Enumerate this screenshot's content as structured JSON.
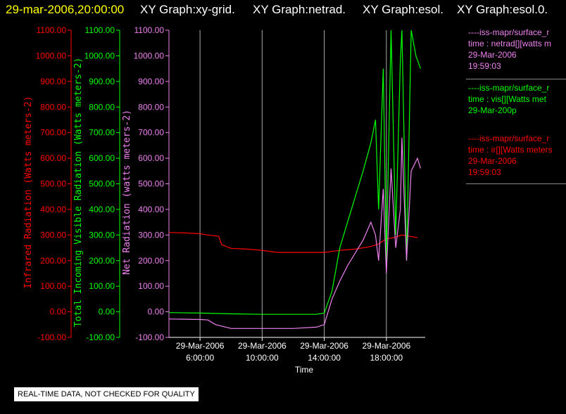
{
  "header": {
    "timestamp": "29-mar-2006,20:00:00",
    "graphs": [
      "XY Graph:xy-grid.",
      "XY Graph:netrad.",
      "XY Graph:esol.",
      "XY Graph:esol.0."
    ]
  },
  "legend": [
    {
      "lines": [
        "----iss-mapr/surface_r",
        "time : netrad[][watts m",
        "29-Mar-2006",
        "19:59:03"
      ],
      "color": "#ee82ee"
    },
    {
      "lines": [
        "----iss-mapr/surface_r",
        "time : vis[][Watts met",
        "29-Mar-200p"
      ],
      "color": "#00ff00"
    },
    {
      "lines": [
        "----iss-mapr/surface_r",
        "time : ir[][Watts meters",
        "29-Mar-2006",
        "19:59:03"
      ],
      "color": "#ff0000"
    }
  ],
  "quality_note": "REAL-TIME DATA, NOT CHECKED FOR QUALITY",
  "chart_data": {
    "type": "line",
    "xlabel": "Time",
    "x_ticks": [
      {
        "date": "29-Mar-2006",
        "time": "6:00:00",
        "hour": 6
      },
      {
        "date": "29-Mar-2006",
        "time": "10:00:00",
        "hour": 10
      },
      {
        "date": "29-Mar-2006",
        "time": "14:00:00",
        "hour": 14
      },
      {
        "date": "29-Mar-2006",
        "time": "18:00:00",
        "hour": 18
      }
    ],
    "xlim_hours": [
      4.0,
      20.5
    ],
    "ylim": [
      -100,
      1100
    ],
    "y_ticks": [
      "-100.00",
      "0.00",
      "100.00",
      "200.00",
      "300.00",
      "400.00",
      "500.00",
      "600.00",
      "700.00",
      "800.00",
      "900.00",
      "1000.00",
      "1100.00"
    ],
    "grid": "vertical",
    "axes": [
      {
        "label": "Infrared Radiation (Watts meters-2)",
        "color": "#ff0000"
      },
      {
        "label": "Total Incoming Visible Radiation (Watts meters-2)",
        "color": "#00ff00"
      },
      {
        "label": "Net Radiation (watts meters-2)",
        "color": "#ee82ee"
      }
    ],
    "series": [
      {
        "name": "ir",
        "color": "#ff0000",
        "x": [
          4.0,
          5.0,
          6.0,
          6.5,
          7.2,
          7.4,
          8.0,
          9.0,
          10.0,
          11.0,
          12.0,
          13.0,
          14.0,
          15.0,
          16.0,
          17.0,
          17.5,
          18.0,
          18.5,
          19.0,
          19.5,
          20.0
        ],
        "y": [
          310,
          308,
          305,
          300,
          295,
          262,
          248,
          245,
          240,
          232,
          232,
          232,
          232,
          240,
          245,
          255,
          265,
          285,
          290,
          300,
          295,
          290
        ]
      },
      {
        "name": "vis",
        "color": "#00ff00",
        "x": [
          4.0,
          6.0,
          8.0,
          10.0,
          12.0,
          13.5,
          14.0,
          14.5,
          15.0,
          15.5,
          16.0,
          16.5,
          17.0,
          17.3,
          17.5,
          17.8,
          18.0,
          18.3,
          18.6,
          18.9,
          19.0,
          19.3,
          19.6,
          19.9,
          20.2
        ],
        "y": [
          -3,
          -5,
          -8,
          -10,
          -10,
          -10,
          -5,
          80,
          250,
          350,
          450,
          550,
          660,
          750,
          400,
          950,
          200,
          1100,
          300,
          980,
          1100,
          200,
          1100,
          1000,
          950
        ]
      },
      {
        "name": "netrad",
        "color": "#ee82ee",
        "x": [
          4.0,
          6.0,
          6.5,
          7.0,
          8.0,
          10.0,
          12.0,
          13.5,
          14.0,
          14.5,
          15.0,
          15.5,
          16.0,
          16.5,
          17.0,
          17.3,
          17.5,
          17.8,
          18.0,
          18.3,
          18.6,
          18.9,
          19.0,
          19.3,
          19.6,
          20.0,
          20.2
        ],
        "y": [
          -28,
          -30,
          -32,
          -50,
          -65,
          -65,
          -65,
          -60,
          -50,
          50,
          120,
          180,
          230,
          280,
          350,
          300,
          200,
          480,
          150,
          560,
          250,
          400,
          680,
          200,
          550,
          600,
          560
        ]
      }
    ]
  }
}
